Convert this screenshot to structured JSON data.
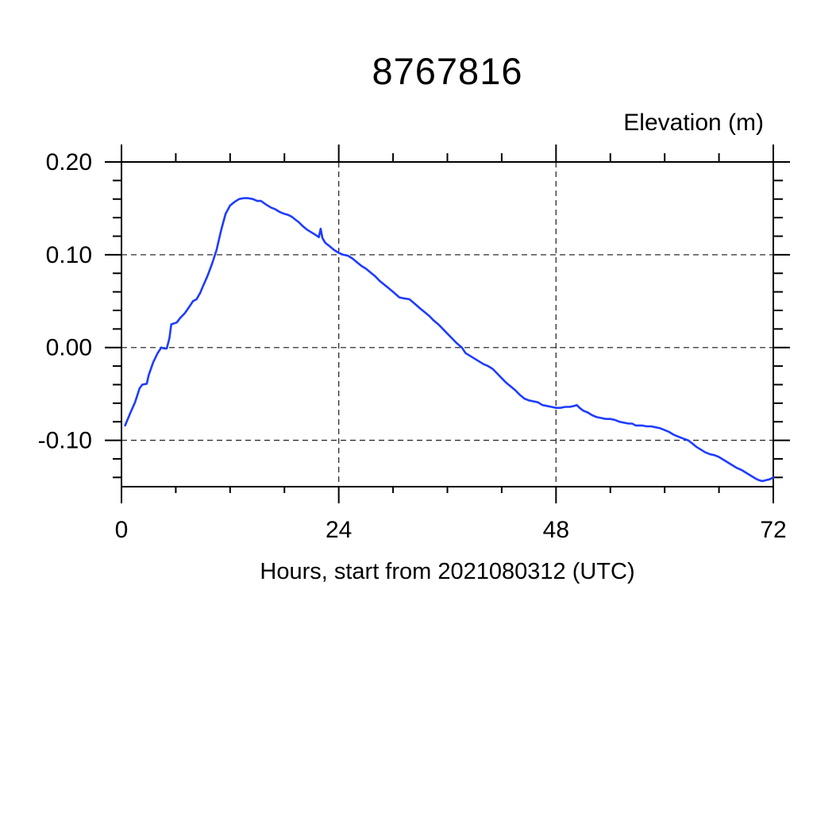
{
  "chart": {
    "title": "8767816",
    "y_axis_title": "Elevation (m)",
    "x_axis_title": "Hours, start from 2021080312 (UTC)"
  },
  "chart_data": {
    "type": "line",
    "title": "8767816",
    "xlabel": "Hours, start from 2021080312 (UTC)",
    "ylabel": "Elevation (m)",
    "xlim": [
      0,
      72
    ],
    "ylim": [
      -0.15,
      0.2
    ],
    "grid": "dashed",
    "legend_position": "none",
    "line_color": "#1e3cff",
    "x_tick_labels": [
      {
        "value": 0,
        "label": "0"
      },
      {
        "value": 24,
        "label": "24"
      },
      {
        "value": 48,
        "label": "48"
      },
      {
        "value": 72,
        "label": "72"
      }
    ],
    "y_tick_labels": [
      {
        "value": 0.2,
        "label": "0.20"
      },
      {
        "value": 0.1,
        "label": "0.10"
      },
      {
        "value": 0.0,
        "label": "0.00"
      },
      {
        "value": -0.1,
        "label": "-0.10"
      }
    ],
    "x_minor_ticks": [
      6,
      12,
      18,
      30,
      36,
      42,
      54,
      60,
      66
    ],
    "y_minor_ticks": [
      -0.14,
      -0.12,
      -0.08,
      -0.06,
      -0.04,
      -0.02,
      0.02,
      0.04,
      0.06,
      0.08,
      0.12,
      0.14,
      0.16,
      0.18
    ],
    "x_gridlines": [
      24,
      48,
      72
    ],
    "y_gridlines": [
      -0.1,
      0.0,
      0.1,
      0.2
    ],
    "series": [
      {
        "name": "elevation",
        "points": [
          [
            0.4,
            -0.084
          ],
          [
            1,
            -0.07
          ],
          [
            1.5,
            -0.059
          ],
          [
            2,
            -0.044
          ],
          [
            2.3,
            -0.04
          ],
          [
            2.8,
            -0.039
          ],
          [
            3,
            -0.03
          ],
          [
            3.5,
            -0.016
          ],
          [
            4,
            -0.006
          ],
          [
            4.4,
            0.0
          ],
          [
            4.7,
            -0.001
          ],
          [
            5.0,
            -0.001
          ],
          [
            5.3,
            0.01
          ],
          [
            5.5,
            0.025
          ],
          [
            6.1,
            0.027
          ],
          [
            6.5,
            0.032
          ],
          [
            7,
            0.037
          ],
          [
            7.5,
            0.044
          ],
          [
            7.9,
            0.05
          ],
          [
            8.3,
            0.052
          ],
          [
            8.7,
            0.059
          ],
          [
            9,
            0.066
          ],
          [
            9.5,
            0.077
          ],
          [
            10,
            0.09
          ],
          [
            10.5,
            0.105
          ],
          [
            11,
            0.126
          ],
          [
            11.5,
            0.144
          ],
          [
            12,
            0.153
          ],
          [
            12.5,
            0.157
          ],
          [
            13,
            0.16
          ],
          [
            13.5,
            0.161
          ],
          [
            14,
            0.161
          ],
          [
            14.5,
            0.16
          ],
          [
            15,
            0.158
          ],
          [
            15.4,
            0.158
          ],
          [
            15.7,
            0.156
          ],
          [
            16,
            0.154
          ],
          [
            16.5,
            0.151
          ],
          [
            17,
            0.149
          ],
          [
            17.5,
            0.146
          ],
          [
            18,
            0.144
          ],
          [
            18.4,
            0.143
          ],
          [
            18.8,
            0.141
          ],
          [
            19.2,
            0.138
          ],
          [
            19.6,
            0.135
          ],
          [
            20,
            0.131
          ],
          [
            20.5,
            0.127
          ],
          [
            21,
            0.124
          ],
          [
            21.5,
            0.121
          ],
          [
            21.8,
            0.119
          ],
          [
            22,
            0.128
          ],
          [
            22.2,
            0.118
          ],
          [
            22.5,
            0.113
          ],
          [
            23,
            0.109
          ],
          [
            23.5,
            0.105
          ],
          [
            24,
            0.102
          ],
          [
            24.5,
            0.1
          ],
          [
            25,
            0.099
          ],
          [
            25.5,
            0.096
          ],
          [
            26,
            0.092
          ],
          [
            26.5,
            0.088
          ],
          [
            27,
            0.085
          ],
          [
            27.5,
            0.081
          ],
          [
            28,
            0.077
          ],
          [
            28.5,
            0.072
          ],
          [
            29,
            0.068
          ],
          [
            29.5,
            0.064
          ],
          [
            30,
            0.06
          ],
          [
            30.7,
            0.054
          ],
          [
            31.2,
            0.053
          ],
          [
            31.8,
            0.052
          ],
          [
            32.3,
            0.048
          ],
          [
            33,
            0.042
          ],
          [
            33.5,
            0.038
          ],
          [
            34,
            0.034
          ],
          [
            34.5,
            0.029
          ],
          [
            35,
            0.025
          ],
          [
            35.5,
            0.02
          ],
          [
            36,
            0.015
          ],
          [
            36.5,
            0.01
          ],
          [
            37,
            0.005
          ],
          [
            37.6,
            0.0
          ],
          [
            38,
            -0.006
          ],
          [
            38.5,
            -0.009
          ],
          [
            39,
            -0.012
          ],
          [
            39.5,
            -0.015
          ],
          [
            40,
            -0.018
          ],
          [
            40.5,
            -0.02
          ],
          [
            41,
            -0.023
          ],
          [
            41.5,
            -0.028
          ],
          [
            42,
            -0.033
          ],
          [
            42.5,
            -0.038
          ],
          [
            43,
            -0.042
          ],
          [
            43.5,
            -0.046
          ],
          [
            44,
            -0.051
          ],
          [
            44.5,
            -0.055
          ],
          [
            45,
            -0.057
          ],
          [
            45.5,
            -0.058
          ],
          [
            46,
            -0.059
          ],
          [
            46.5,
            -0.062
          ],
          [
            47,
            -0.063
          ],
          [
            47.5,
            -0.064
          ],
          [
            48,
            -0.065
          ],
          [
            48.5,
            -0.065
          ],
          [
            49,
            -0.064
          ],
          [
            49.5,
            -0.064
          ],
          [
            50,
            -0.063
          ],
          [
            50.3,
            -0.062
          ],
          [
            50.6,
            -0.065
          ],
          [
            51,
            -0.068
          ],
          [
            51.5,
            -0.07
          ],
          [
            52,
            -0.073
          ],
          [
            52.5,
            -0.075
          ],
          [
            53,
            -0.076
          ],
          [
            53.5,
            -0.077
          ],
          [
            54,
            -0.077
          ],
          [
            54.5,
            -0.078
          ],
          [
            55,
            -0.08
          ],
          [
            55.5,
            -0.081
          ],
          [
            56,
            -0.082
          ],
          [
            56.4,
            -0.082
          ],
          [
            56.8,
            -0.084
          ],
          [
            57.5,
            -0.084
          ],
          [
            58,
            -0.085
          ],
          [
            58.5,
            -0.085
          ],
          [
            59,
            -0.086
          ],
          [
            59.5,
            -0.087
          ],
          [
            60,
            -0.089
          ],
          [
            60.5,
            -0.091
          ],
          [
            61,
            -0.094
          ],
          [
            61.5,
            -0.096
          ],
          [
            62,
            -0.098
          ],
          [
            62.6,
            -0.1
          ],
          [
            63,
            -0.103
          ],
          [
            63.5,
            -0.107
          ],
          [
            64,
            -0.11
          ],
          [
            64.5,
            -0.113
          ],
          [
            65,
            -0.115
          ],
          [
            65.5,
            -0.116
          ],
          [
            66,
            -0.118
          ],
          [
            66.5,
            -0.121
          ],
          [
            67,
            -0.124
          ],
          [
            67.5,
            -0.127
          ],
          [
            68,
            -0.13
          ],
          [
            68.5,
            -0.132
          ],
          [
            69,
            -0.135
          ],
          [
            69.5,
            -0.138
          ],
          [
            70,
            -0.141
          ],
          [
            70.4,
            -0.143
          ],
          [
            70.8,
            -0.144
          ],
          [
            71.2,
            -0.143
          ],
          [
            71.6,
            -0.142
          ],
          [
            72,
            -0.14
          ]
        ]
      }
    ]
  }
}
